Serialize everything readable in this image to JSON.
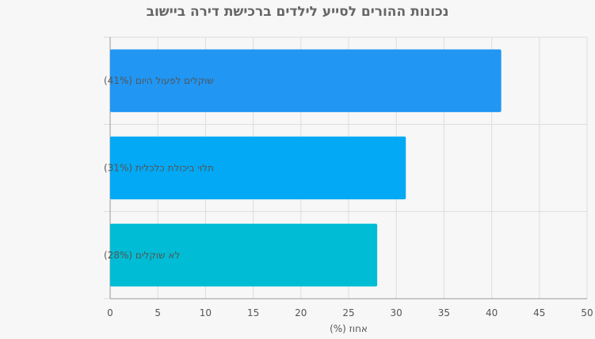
{
  "chart_data": {
    "type": "bar",
    "orientation": "horizontal",
    "title": "נכונות ההורים לסייע לילדים ברכישת דירה ביישוב",
    "xlabel": "אחוז (%)",
    "ylabel": "",
    "xlim": [
      0,
      50
    ],
    "ticks": [
      0,
      5,
      10,
      15,
      20,
      25,
      30,
      35,
      40,
      45,
      50
    ],
    "grid": true,
    "categories": [
      "שוקלים לפעול היום (41%)",
      "תלוי ביכולת כלכלית (31%)",
      "לא שוקלים (28%)"
    ],
    "values": [
      41,
      31,
      28
    ],
    "colors": [
      "#2196f3",
      "#03a9f4",
      "#00bcd4"
    ]
  }
}
